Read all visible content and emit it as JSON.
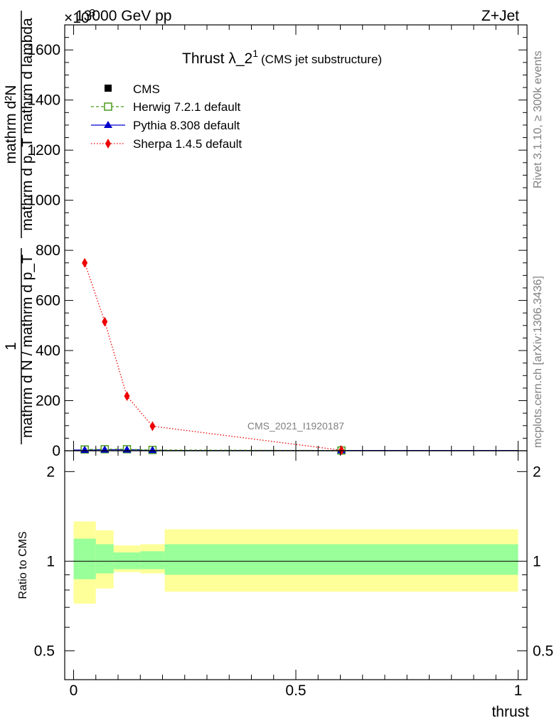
{
  "header": {
    "left": "13000 GeV pp",
    "right": "Z+Jet"
  },
  "exponent_label": "×10",
  "exponent_sup": "3",
  "side_labels": {
    "rivet": "Rivet 3.1.10, ≥ 300k events",
    "mcplots": "mcplots.cern.ch [arXiv:1306.3436]"
  },
  "watermark": "CMS_2021_I1920187",
  "colors": {
    "cms": "#000000",
    "herwig": "#4a9a1a",
    "pythia": "#0000cc",
    "sherpa": "#ee0000",
    "band_inner": "#99ff99",
    "band_outer": "#ffff99"
  },
  "chart_data": [
    {
      "type": "line",
      "title": "Thrust λ_2",
      "title_sup": "1",
      "title_suffix": "(CMS jet substructure)",
      "ylabel_numerator": "mathrm d²N",
      "ylabel_denominator": "mathrm d p_T mathrm d lambda",
      "ylabel_prefactor_num": "1",
      "ylabel_prefactor_den": "mathrm d N / mathrm d p_T",
      "xlim": [
        -0.02,
        1.02
      ],
      "ylim": [
        0,
        1700
      ],
      "y_ticks": [
        0,
        200,
        400,
        600,
        800,
        1000,
        1200,
        1400,
        1600
      ],
      "y_tick_labels": [
        "0",
        "200",
        "400",
        "600",
        "800",
        "1000",
        "1200",
        "1400",
        "1600"
      ],
      "bin_edges": [
        0,
        0.05,
        0.09,
        0.15,
        0.205,
        1.0
      ],
      "legend_position": "top-left",
      "series": [
        {
          "name": "CMS",
          "marker": "square",
          "x": [
            0.025,
            0.07,
            0.12,
            0.1775,
            0.6025
          ],
          "y": [
            4,
            5,
            5,
            3,
            1
          ]
        },
        {
          "name": "Herwig 7.2.1 default",
          "marker": "open-square",
          "x": [
            0.025,
            0.07,
            0.12,
            0.1775,
            0.6025
          ],
          "y": [
            5,
            6,
            6,
            3,
            1
          ]
        },
        {
          "name": "Pythia 8.308 default",
          "marker": "triangle",
          "x": [
            0.025,
            0.07,
            0.12,
            0.1775,
            0.6025
          ],
          "y": [
            3,
            4,
            4,
            2,
            1
          ]
        },
        {
          "name": "Sherpa 1.4.5 default",
          "marker": "diamond",
          "x": [
            0.025,
            0.07,
            0.12,
            0.1775,
            0.6025
          ],
          "y": [
            750,
            515,
            218,
            98,
            2
          ],
          "yerr": [
            15,
            12,
            8,
            4,
            0.5
          ]
        }
      ]
    },
    {
      "type": "area",
      "ylabel": "Ratio to CMS",
      "xlabel": "thrust",
      "xlim": [
        -0.02,
        1.02
      ],
      "ylim": [
        0.4,
        2.35
      ],
      "log_y": true,
      "y_tick_labels": [
        "0.5",
        "1",
        "2"
      ],
      "y_ticks": [
        0.5,
        1,
        2
      ],
      "x_ticks": [
        0,
        0.5,
        1
      ],
      "x_tick_labels": [
        "0",
        "0.5",
        "1"
      ],
      "bins": [
        {
          "xlo": 0.0,
          "xhi": 0.05,
          "inner_lo": 0.87,
          "inner_hi": 1.19,
          "outer_lo": 0.72,
          "outer_hi": 1.36
        },
        {
          "xlo": 0.05,
          "xhi": 0.09,
          "inner_lo": 0.91,
          "inner_hi": 1.14,
          "outer_lo": 0.81,
          "outer_hi": 1.27
        },
        {
          "xlo": 0.09,
          "xhi": 0.15,
          "inner_lo": 0.94,
          "inner_hi": 1.07,
          "outer_lo": 0.92,
          "outer_hi": 1.13
        },
        {
          "xlo": 0.15,
          "xhi": 0.205,
          "inner_lo": 0.94,
          "inner_hi": 1.08,
          "outer_lo": 0.91,
          "outer_hi": 1.14
        },
        {
          "xlo": 0.205,
          "xhi": 1.0,
          "inner_lo": 0.9,
          "inner_hi": 1.14,
          "outer_lo": 0.79,
          "outer_hi": 1.28
        }
      ]
    }
  ]
}
